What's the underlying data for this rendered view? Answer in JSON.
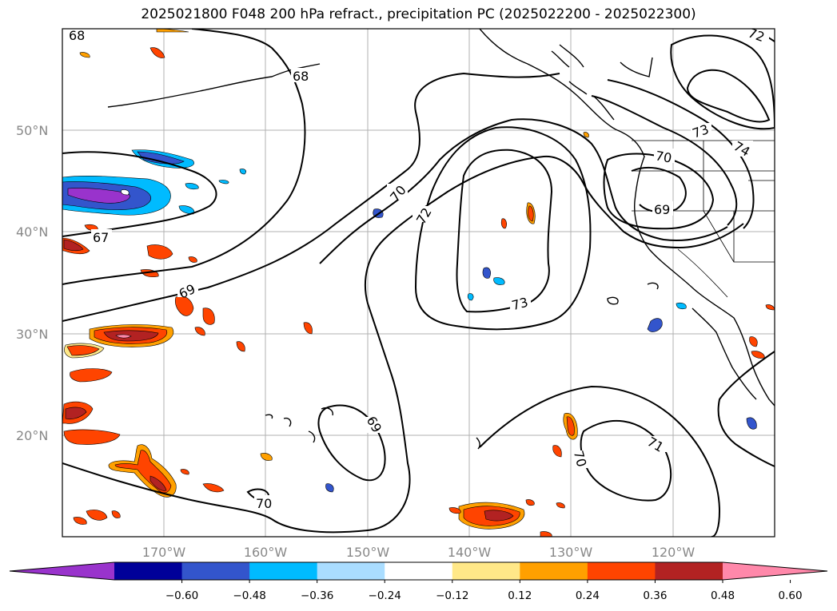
{
  "title": "2025021800 F048 200 hPa refract., precipitation PC (2025022200 - 2025022300)",
  "lat_labels": [
    "50°N",
    "40°N",
    "30°N",
    "20°N"
  ],
  "lon_labels": [
    "170°W",
    "160°W",
    "150°W",
    "140°W",
    "130°W",
    "120°W"
  ],
  "colorbar": {
    "colors": [
      "#9933cc",
      "#000099",
      "#3355cc",
      "#00bbff",
      "#aaddff",
      "#ffffff",
      "#ffe888",
      "#ffa000",
      "#ff4400",
      "#b22222",
      "#ff88aa"
    ],
    "tick_labels": [
      "−0.60",
      "−0.48",
      "−0.36",
      "−0.24",
      "−0.12",
      "0.12",
      "0.24",
      "0.36",
      "0.48",
      "0.60"
    ]
  },
  "contour_labels": [
    "68",
    "68",
    "67",
    "69",
    "70",
    "72",
    "73",
    "69",
    "70",
    "71",
    "70",
    "73",
    "74",
    "70",
    "69",
    "72"
  ]
}
